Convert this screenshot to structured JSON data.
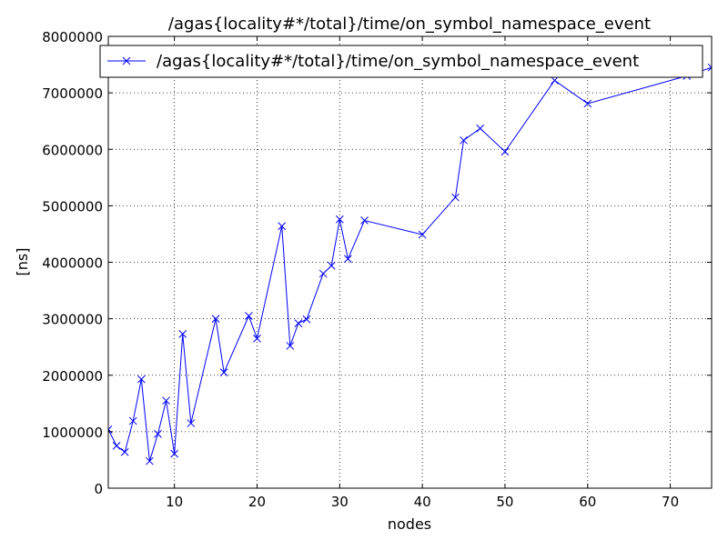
{
  "chart_data": {
    "type": "line",
    "title": "/agas{locality#*/total}/time/on_symbol_namespace_event",
    "xlabel": "nodes",
    "ylabel": "[ns]",
    "xlim": [
      2,
      75
    ],
    "ylim": [
      0,
      8000000
    ],
    "xticks": [
      10,
      20,
      30,
      40,
      50,
      60,
      70
    ],
    "yticks": [
      0,
      1000000,
      2000000,
      3000000,
      4000000,
      5000000,
      6000000,
      7000000,
      8000000
    ],
    "grid": true,
    "legend": "top",
    "series": [
      {
        "name": "/agas{locality#*/total}/time/on_symbol_namespace_event",
        "color": "#0000ff",
        "marker": "x",
        "x": [
          2,
          3,
          4,
          5,
          6,
          7,
          8,
          9,
          10,
          11,
          12,
          15,
          16,
          19,
          20,
          23,
          24,
          25,
          26,
          28,
          29,
          30,
          31,
          33,
          40,
          44,
          45,
          47,
          50,
          56,
          60,
          72,
          75
        ],
        "y": [
          1040000,
          750000,
          640000,
          1190000,
          1930000,
          480000,
          960000,
          1550000,
          610000,
          2730000,
          1150000,
          3000000,
          2050000,
          3050000,
          2650000,
          4640000,
          2520000,
          2920000,
          2990000,
          3800000,
          3940000,
          4760000,
          4060000,
          4740000,
          4490000,
          5150000,
          6160000,
          6370000,
          5960000,
          7220000,
          6810000,
          7300000,
          7450000
        ]
      }
    ]
  }
}
